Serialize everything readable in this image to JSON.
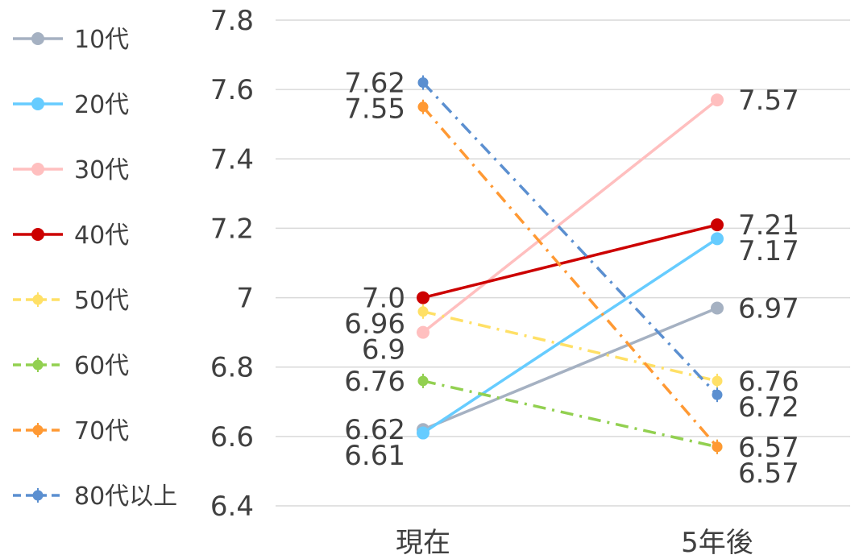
{
  "chart_data": {
    "type": "line",
    "title": "",
    "xlabel": "",
    "ylabel": "",
    "categories": [
      "現在",
      "5年後"
    ],
    "ylim": [
      6.4,
      7.8
    ],
    "yticks": [
      "6.4",
      "6.6",
      "6.8",
      "7",
      "7.2",
      "7.4",
      "7.6",
      "7.8"
    ],
    "grid": true,
    "legend_position": "left",
    "series": [
      {
        "name": "10代",
        "values": [
          6.62,
          6.97
        ],
        "labels": [
          "6.62",
          "6.97"
        ],
        "color": "#A5B1C2",
        "dash": "solid"
      },
      {
        "name": "20代",
        "values": [
          6.61,
          7.17
        ],
        "labels": [
          "6.61",
          "7.17"
        ],
        "color": "#66CCFF",
        "dash": "solid"
      },
      {
        "name": "30代",
        "values": [
          6.9,
          7.57
        ],
        "labels": [
          "6.9",
          "7.57"
        ],
        "color": "#FFBFBF",
        "dash": "solid"
      },
      {
        "name": "40代",
        "values": [
          7.0,
          7.21
        ],
        "labels": [
          "7.0",
          "7.21"
        ],
        "color": "#CC0000",
        "dash": "solid"
      },
      {
        "name": "50代",
        "values": [
          6.96,
          6.76
        ],
        "labels": [
          "6.96",
          "6.76"
        ],
        "color": "#FFE066",
        "dash": "dashdot"
      },
      {
        "name": "60代",
        "values": [
          6.76,
          6.57
        ],
        "labels": [
          "6.76",
          "6.57"
        ],
        "color": "#92D050",
        "dash": "dashdot"
      },
      {
        "name": "70代",
        "values": [
          7.55,
          6.57
        ],
        "labels": [
          "7.55",
          "6.57"
        ],
        "color": "#FF9933",
        "dash": "dashdot"
      },
      {
        "name": "80代以上",
        "values": [
          7.62,
          6.72
        ],
        "labels": [
          "7.62",
          "6.72"
        ],
        "color": "#5B8FD0",
        "dash": "dashdot"
      }
    ]
  }
}
